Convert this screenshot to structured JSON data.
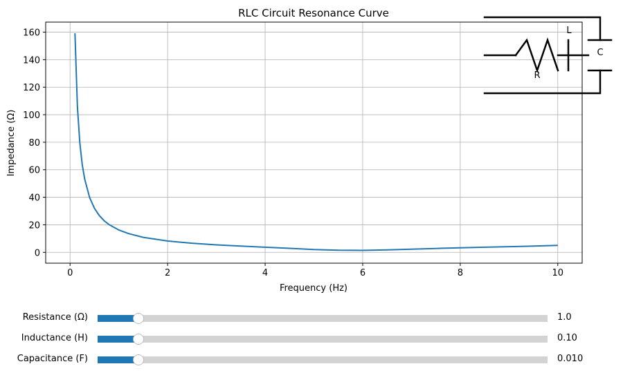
{
  "chart_data": {
    "type": "line",
    "title": "RLC Circuit Resonance Curve",
    "xlabel": "Frequency (Hz)",
    "ylabel": "Impedance (Ω)",
    "xlim": [
      -0.5,
      10.5
    ],
    "ylim": [
      -7.9,
      167.3
    ],
    "xticks": [
      0,
      2,
      4,
      6,
      8,
      10
    ],
    "yticks": [
      0,
      20,
      40,
      60,
      80,
      100,
      120,
      140,
      160
    ],
    "grid": true,
    "line_color": "#1f77b4",
    "series": [
      {
        "x": [
          0.1,
          0.15,
          0.2,
          0.25,
          0.3,
          0.4,
          0.5,
          0.6,
          0.7,
          0.8,
          1.0,
          1.2,
          1.5,
          2.0,
          2.5,
          3.0,
          3.5,
          4.0,
          4.5,
          5.0,
          5.5,
          6.0,
          6.5,
          7.0,
          7.5,
          8.0,
          8.5,
          9.0,
          9.5,
          10.0
        ],
        "values": [
          159.2,
          106.1,
          79.6,
          63.7,
          53.1,
          39.9,
          31.9,
          26.7,
          22.9,
          20.1,
          16.2,
          13.6,
          10.9,
          8.2,
          6.6,
          5.4,
          4.5,
          3.7,
          2.9,
          2.0,
          1.5,
          1.4,
          1.8,
          2.3,
          2.8,
          3.3,
          3.7,
          4.1,
          4.5,
          5.0
        ]
      }
    ]
  },
  "circuit": {
    "resistor_label": "R",
    "inductor_label": "L",
    "capacitor_label": "C"
  },
  "sliders": [
    {
      "label": "Resistance (Ω)",
      "value_text": "1.0",
      "fraction": 0.09
    },
    {
      "label": "Inductance (H)",
      "value_text": "0.10",
      "fraction": 0.09
    },
    {
      "label": "Capacitance (F)",
      "value_text": "0.010",
      "fraction": 0.09
    }
  ]
}
